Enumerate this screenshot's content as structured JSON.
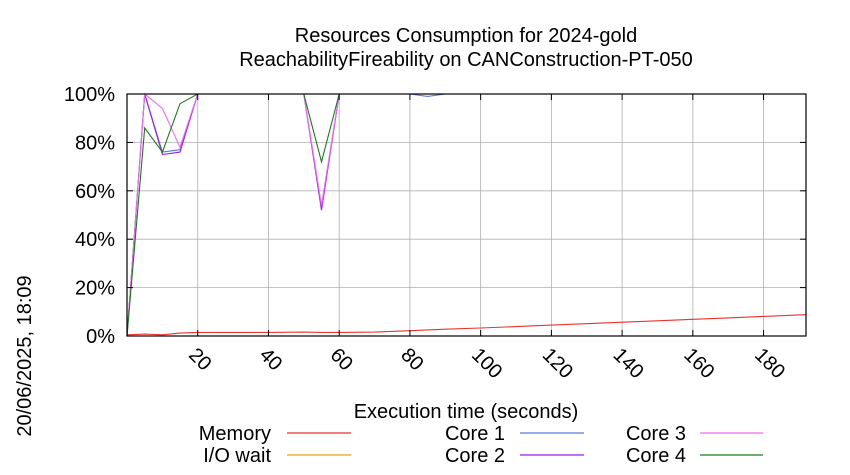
{
  "chart_data": {
    "type": "line",
    "title": "Resources Consumption for 2024-gold",
    "subtitle": "ReachabilityFireability on CANConstruction-PT-050",
    "xlabel": "Execution time (seconds)",
    "ylabel": "",
    "side_label": "20/06/2025, 18:09",
    "xlim": [
      0,
      192
    ],
    "ylim": [
      0,
      100
    ],
    "x_ticks": [
      20,
      40,
      60,
      80,
      100,
      120,
      140,
      160,
      180
    ],
    "y_ticks": [
      {
        "value": 0,
        "label": "0%"
      },
      {
        "value": 20,
        "label": "20%"
      },
      {
        "value": 40,
        "label": "40%"
      },
      {
        "value": 60,
        "label": "60%"
      },
      {
        "value": 80,
        "label": "80%"
      },
      {
        "value": 100,
        "label": "100%"
      }
    ],
    "grid": true,
    "legend_placement": "bottom",
    "series": [
      {
        "name": "Memory",
        "color": "#e8332e",
        "points": [
          [
            0,
            0.5
          ],
          [
            5,
            0.8
          ],
          [
            10,
            0.5
          ],
          [
            15,
            1.2
          ],
          [
            20,
            1.5
          ],
          [
            30,
            1.5
          ],
          [
            40,
            1.5
          ],
          [
            50,
            1.6
          ],
          [
            55,
            1.5
          ],
          [
            60,
            1.5
          ],
          [
            70,
            1.6
          ],
          [
            80,
            2.2
          ],
          [
            90,
            2.8
          ],
          [
            100,
            3.3
          ],
          [
            110,
            3.9
          ],
          [
            120,
            4.5
          ],
          [
            130,
            5.1
          ],
          [
            140,
            5.7
          ],
          [
            150,
            6.3
          ],
          [
            160,
            6.9
          ],
          [
            170,
            7.5
          ],
          [
            180,
            8.1
          ],
          [
            190,
            8.7
          ],
          [
            192,
            8.8
          ]
        ]
      },
      {
        "name": "I/O wait",
        "color": "#e6a31c",
        "points": [
          [
            0,
            0
          ],
          [
            192,
            0
          ]
        ]
      },
      {
        "name": "Core 1",
        "color": "#5a7be0",
        "points": [
          [
            0,
            0
          ],
          [
            5,
            100
          ],
          [
            10,
            76
          ],
          [
            15,
            77
          ],
          [
            20,
            100
          ],
          [
            50,
            100
          ],
          [
            55,
            53
          ],
          [
            60,
            100
          ],
          [
            80,
            100
          ],
          [
            85,
            99
          ],
          [
            90,
            100
          ],
          [
            192,
            100
          ]
        ]
      },
      {
        "name": "Core 2",
        "color": "#9c1fe8",
        "points": [
          [
            0,
            0
          ],
          [
            5,
            100
          ],
          [
            10,
            75
          ],
          [
            15,
            76
          ],
          [
            20,
            100
          ],
          [
            50,
            100
          ],
          [
            55,
            52
          ],
          [
            60,
            100
          ],
          [
            192,
            100
          ]
        ]
      },
      {
        "name": "Core 3",
        "color": "#f06cf0",
        "points": [
          [
            0,
            0
          ],
          [
            5,
            100
          ],
          [
            10,
            94
          ],
          [
            15,
            78
          ],
          [
            20,
            100
          ],
          [
            50,
            100
          ],
          [
            55,
            54
          ],
          [
            60,
            100
          ],
          [
            192,
            100
          ]
        ]
      },
      {
        "name": "Core 4",
        "color": "#1f7a1f",
        "points": [
          [
            0,
            0
          ],
          [
            5,
            86
          ],
          [
            10,
            76
          ],
          [
            15,
            96
          ],
          [
            20,
            100
          ],
          [
            50,
            100
          ],
          [
            55,
            72
          ],
          [
            60,
            100
          ],
          [
            192,
            100
          ]
        ]
      }
    ]
  }
}
